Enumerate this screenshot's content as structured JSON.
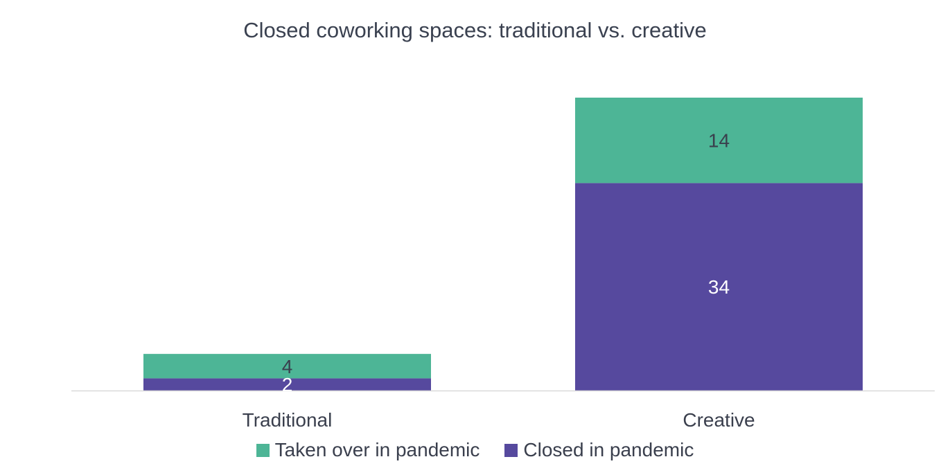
{
  "chart_data": {
    "type": "bar",
    "stacked": true,
    "title": "Closed coworking spaces: traditional vs. creative",
    "categories": [
      "Traditional",
      "Creative"
    ],
    "series": [
      {
        "name": "Closed in pandemic",
        "values": [
          2,
          34
        ],
        "color": "#56499e",
        "label_color": "#ffffff"
      },
      {
        "name": "Taken over in pandemic",
        "values": [
          4,
          14
        ],
        "color": "#4db596",
        "label_color": "#3a3f4d"
      }
    ],
    "legend_order": [
      "Taken over in pandemic",
      "Closed in pandemic"
    ],
    "legend_position": "bottom",
    "ylim": [
      0,
      48
    ],
    "grid": false,
    "axis_color": "#d9d9d9"
  }
}
